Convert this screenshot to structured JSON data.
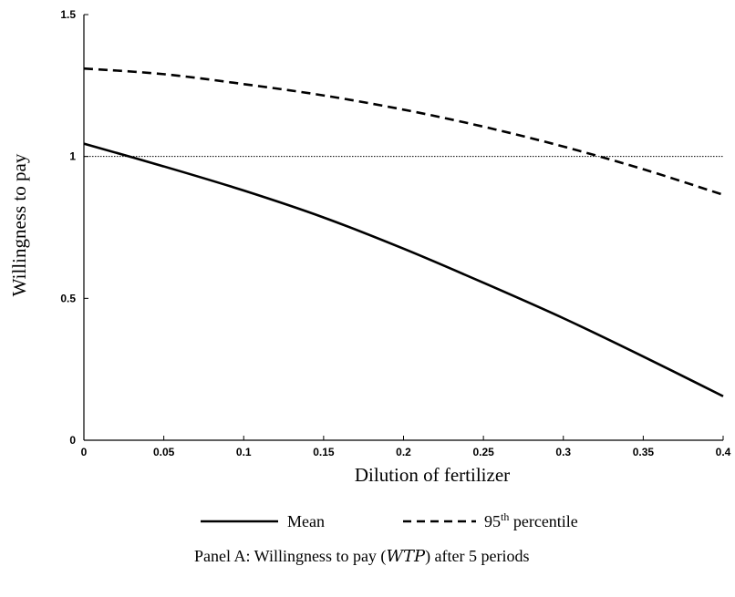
{
  "chart_data": {
    "type": "line",
    "xlabel": "Dilution of fertilizer",
    "ylabel": "Willingness to pay",
    "xlim": [
      0,
      0.4
    ],
    "ylim": [
      0,
      1.5
    ],
    "xticks": [
      "0",
      "0.05",
      "0.1",
      "0.15",
      "0.2",
      "0.25",
      "0.3",
      "0.35",
      "0.4"
    ],
    "yticks": [
      "0",
      "0.5",
      "1",
      "1.5"
    ],
    "xtick_values": [
      0,
      0.05,
      0.1,
      0.15,
      0.2,
      0.25,
      0.3,
      0.35,
      0.4
    ],
    "ytick_values": [
      0,
      0.5,
      1,
      1.5
    ],
    "reference_line": {
      "y": 1,
      "style": "dotted"
    },
    "series": [
      {
        "name": "Mean",
        "style": "solid",
        "x": [
          0,
          0.05,
          0.1,
          0.15,
          0.2,
          0.25,
          0.3,
          0.35,
          0.4
        ],
        "values": [
          1.045,
          0.965,
          0.88,
          0.785,
          0.675,
          0.555,
          0.43,
          0.295,
          0.155
        ]
      },
      {
        "name": "95",
        "name_superscript": "th",
        "name_suffix": " percentile",
        "style": "dashed",
        "x": [
          0,
          0.05,
          0.1,
          0.15,
          0.2,
          0.25,
          0.3,
          0.35,
          0.4
        ],
        "values": [
          1.31,
          1.29,
          1.255,
          1.215,
          1.165,
          1.105,
          1.035,
          0.955,
          0.865
        ]
      }
    ],
    "legend_position": "bottom",
    "caption_prefix": "Panel A: Willingness to pay (",
    "caption_italic": "WTP",
    "caption_suffix": ") after 5 periods"
  }
}
